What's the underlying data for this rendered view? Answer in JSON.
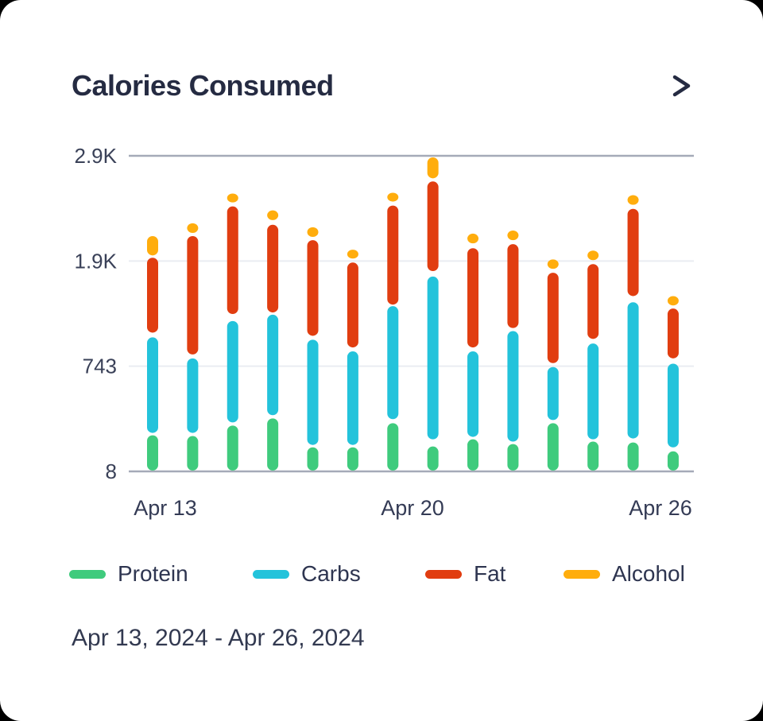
{
  "page": {
    "background_color": "#000000",
    "card_color": "#ffffff"
  },
  "header": {
    "title": "Calories Consumed",
    "chevron_icon": "chevron-right"
  },
  "footer": {
    "date_range": "Apr 13, 2024 - Apr 26, 2024"
  },
  "legend": [
    {
      "id": "protein",
      "label": "Protein",
      "color": "#3fcb7d"
    },
    {
      "id": "carbs",
      "label": "Carbs",
      "color": "#23c3db"
    },
    {
      "id": "fat",
      "label": "Fat",
      "color": "#e13d10"
    },
    {
      "id": "alcohol",
      "label": "Alcohol",
      "color": "#ffad0d"
    }
  ],
  "chart_data": {
    "type": "bar",
    "subtype": "stacked-segment-bar",
    "title": "Calories Consumed",
    "unit": "calories",
    "grid": true,
    "legend_position": "bottom",
    "y_range": [
      8,
      2900
    ],
    "y_ticks": [
      {
        "label": "2.9K",
        "value": 2900
      },
      {
        "label": "1.9K",
        "value": 1900
      },
      {
        "label": "743",
        "value": 743
      },
      {
        "label": "8",
        "value": 8
      }
    ],
    "x_ticks": [
      {
        "label": "Apr 13",
        "day_index": 0
      },
      {
        "label": "Apr 20",
        "day_index": 7
      },
      {
        "label": "Apr 26",
        "day_index": 13
      }
    ],
    "series_order": [
      "protein",
      "carbs",
      "fat",
      "alcohol"
    ],
    "series_colors": {
      "protein": "#3fcb7d",
      "carbs": "#23c3db",
      "fat": "#e13d10",
      "alcohol": "#ffad0d"
    },
    "days": [
      {
        "date": "Apr 13",
        "protein": [
          14,
          260
        ],
        "carbs": [
          277,
          1060
        ],
        "fat": [
          1112,
          1931
        ],
        "alcohol": [
          1953,
          2137
        ]
      },
      {
        "date": "Apr 14",
        "protein": [
          14,
          255
        ],
        "carbs": [
          277,
          829
        ],
        "fat": [
          872,
          2137
        ],
        "alcohol": [
          2167,
          2259
        ]
      },
      {
        "date": "Apr 15",
        "protein": [
          14,
          328
        ],
        "carbs": [
          350,
          1240
        ],
        "fat": [
          1317,
          2419
        ],
        "alcohol": [
          2457,
          2541
        ]
      },
      {
        "date": "Apr 16",
        "protein": [
          14,
          378
        ],
        "carbs": [
          401,
          1309
        ],
        "fat": [
          1334,
          2244
        ],
        "alcohol": [
          2289,
          2381
        ]
      },
      {
        "date": "Apr 17",
        "protein": [
          14,
          176
        ],
        "carbs": [
          193,
          1034
        ],
        "fat": [
          1077,
          2098
        ],
        "alcohol": [
          2129,
          2221
        ]
      },
      {
        "date": "Apr 18",
        "protein": [
          14,
          176
        ],
        "carbs": [
          193,
          906
        ],
        "fat": [
          949,
          1883
        ],
        "alcohol": [
          1923,
          2007
        ]
      },
      {
        "date": "Apr 19",
        "protein": [
          14,
          345
        ],
        "carbs": [
          373,
          1403
        ],
        "fat": [
          1420,
          2427
        ],
        "alcohol": [
          2465,
          2549
        ]
      },
      {
        "date": "Apr 20",
        "protein": [
          14,
          182
        ],
        "carbs": [
          232,
          1729
        ],
        "fat": [
          1789,
          2656
        ],
        "alcohol": [
          2686,
          2885
        ]
      },
      {
        "date": "Apr 21",
        "protein": [
          14,
          232
        ],
        "carbs": [
          249,
          906
        ],
        "fat": [
          949,
          2022
        ],
        "alcohol": [
          2068,
          2160
        ]
      },
      {
        "date": "Apr 22",
        "protein": [
          14,
          199
        ],
        "carbs": [
          216,
          1129
        ],
        "fat": [
          1163,
          2060
        ],
        "alcohol": [
          2098,
          2190
        ]
      },
      {
        "date": "Apr 23",
        "protein": [
          14,
          345
        ],
        "carbs": [
          367,
          737
        ],
        "fat": [
          777,
          1771
        ],
        "alcohol": [
          1814,
          1915
        ]
      },
      {
        "date": "Apr 24",
        "protein": [
          14,
          216
        ],
        "carbs": [
          232,
          992
        ],
        "fat": [
          1043,
          1866
        ],
        "alcohol": [
          1908,
          1999
        ]
      },
      {
        "date": "Apr 25",
        "protein": [
          14,
          210
        ],
        "carbs": [
          238,
          1446
        ],
        "fat": [
          1514,
          2396
        ],
        "alcohol": [
          2434,
          2526
        ]
      },
      {
        "date": "Apr 26",
        "protein": [
          14,
          148
        ],
        "carbs": [
          176,
          771
        ],
        "fat": [
          829,
          1377
        ],
        "alcohol": [
          1411,
          1514
        ]
      }
    ]
  }
}
